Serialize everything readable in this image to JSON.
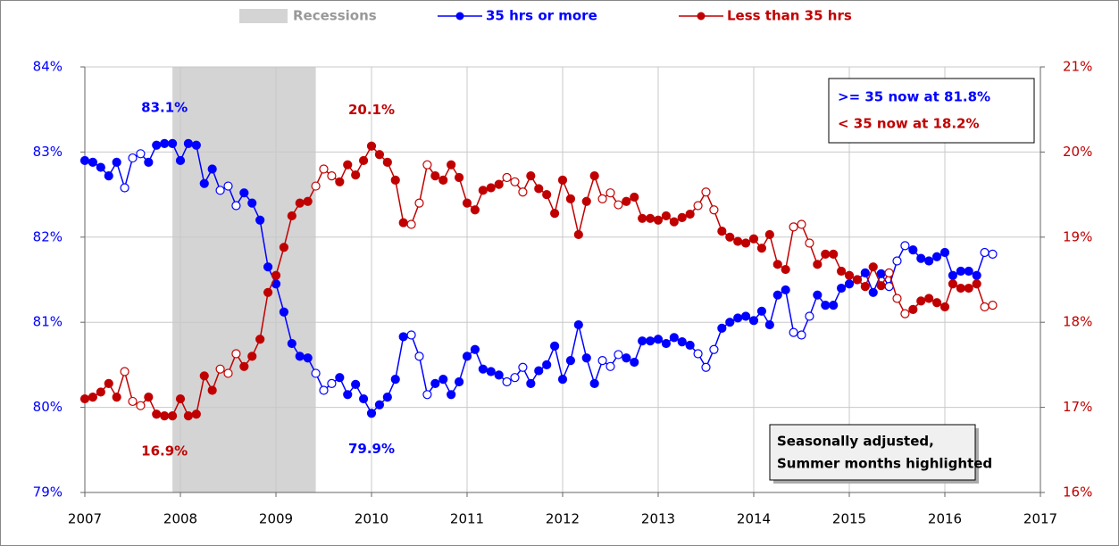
{
  "chart_data": {
    "type": "line",
    "legend": "top",
    "grid": true,
    "highlight_months": [
      6,
      7,
      8
    ],
    "x": [
      "2007-01",
      "2007-02",
      "2007-03",
      "2007-04",
      "2007-05",
      "2007-06",
      "2007-07",
      "2007-08",
      "2007-09",
      "2007-10",
      "2007-11",
      "2007-12",
      "2008-01",
      "2008-02",
      "2008-03",
      "2008-04",
      "2008-05",
      "2008-06",
      "2008-07",
      "2008-08",
      "2008-09",
      "2008-10",
      "2008-11",
      "2008-12",
      "2009-01",
      "2009-02",
      "2009-03",
      "2009-04",
      "2009-05",
      "2009-06",
      "2009-07",
      "2009-08",
      "2009-09",
      "2009-10",
      "2009-11",
      "2009-12",
      "2010-01",
      "2010-02",
      "2010-03",
      "2010-04",
      "2010-05",
      "2010-06",
      "2010-07",
      "2010-08",
      "2010-09",
      "2010-10",
      "2010-11",
      "2010-12",
      "2011-01",
      "2011-02",
      "2011-03",
      "2011-04",
      "2011-05",
      "2011-06",
      "2011-07",
      "2011-08",
      "2011-09",
      "2011-10",
      "2011-11",
      "2011-12",
      "2012-01",
      "2012-02",
      "2012-03",
      "2012-04",
      "2012-05",
      "2012-06",
      "2012-07",
      "2012-08",
      "2012-09",
      "2012-10",
      "2012-11",
      "2012-12",
      "2013-01",
      "2013-02",
      "2013-03",
      "2013-04",
      "2013-05",
      "2013-06",
      "2013-07",
      "2013-08",
      "2013-09",
      "2013-10",
      "2013-11",
      "2013-12",
      "2014-01",
      "2014-02",
      "2014-03",
      "2014-04",
      "2014-05",
      "2014-06",
      "2014-07",
      "2014-08",
      "2014-09",
      "2014-10",
      "2014-11",
      "2014-12",
      "2015-01",
      "2015-02",
      "2015-03",
      "2015-04",
      "2015-05",
      "2015-06",
      "2015-07",
      "2015-08",
      "2015-09",
      "2015-10",
      "2015-11",
      "2015-12",
      "2016-01",
      "2016-02",
      "2016-03",
      "2016-04",
      "2016-05",
      "2016-06",
      "2016-07"
    ],
    "xlim": [
      2007,
      2017
    ],
    "xticks": [
      2007,
      2008,
      2009,
      2010,
      2011,
      2012,
      2013,
      2014,
      2015,
      2016,
      2017
    ],
    "ylim": [
      79,
      84
    ],
    "yticks": [
      {
        "value": 79,
        "label": "79%"
      },
      {
        "value": 80,
        "label": "80%"
      },
      {
        "value": 81,
        "label": "81%"
      },
      {
        "value": 82,
        "label": "82%"
      },
      {
        "value": 83,
        "label": "83%"
      },
      {
        "value": 84,
        "label": "84%"
      }
    ],
    "y2lim": [
      16,
      21
    ],
    "y2ticks": [
      {
        "value": 16,
        "label": "16%"
      },
      {
        "value": 17,
        "label": "17%"
      },
      {
        "value": 18,
        "label": "18%"
      },
      {
        "value": 19,
        "label": "19%"
      },
      {
        "value": 20,
        "label": "20%"
      },
      {
        "value": 21,
        "label": "21%"
      }
    ],
    "recessions": {
      "name": "Recessions",
      "color": "#d4d4d4",
      "spans": [
        {
          "start": "2007-12",
          "end": "2009-06"
        }
      ]
    },
    "series": [
      {
        "name": "35 hrs or more",
        "color": "#0000ff",
        "axis": "y",
        "max_label": "83.1%",
        "min_label": "79.9%",
        "now_label": ">= 35 now at 81.8%",
        "values": [
          82.9,
          82.88,
          82.82,
          82.72,
          82.88,
          82.58,
          82.93,
          82.98,
          82.88,
          83.08,
          83.1,
          83.1,
          82.9,
          83.1,
          83.08,
          82.63,
          82.8,
          82.55,
          82.6,
          82.37,
          82.52,
          82.4,
          82.2,
          81.65,
          81.45,
          81.12,
          80.75,
          80.6,
          80.58,
          80.4,
          80.2,
          80.28,
          80.35,
          80.15,
          80.27,
          80.1,
          79.93,
          80.03,
          80.12,
          80.33,
          80.83,
          80.85,
          80.6,
          80.15,
          80.28,
          80.33,
          80.15,
          80.3,
          80.6,
          80.68,
          80.45,
          80.42,
          80.38,
          80.3,
          80.35,
          80.47,
          80.28,
          80.43,
          80.5,
          80.72,
          80.33,
          80.55,
          80.97,
          80.58,
          80.28,
          80.55,
          80.48,
          80.62,
          80.58,
          80.53,
          80.78,
          80.78,
          80.8,
          80.75,
          80.82,
          80.77,
          80.73,
          80.63,
          80.47,
          80.68,
          80.93,
          81.0,
          81.05,
          81.07,
          81.02,
          81.13,
          80.97,
          81.32,
          81.38,
          80.88,
          80.85,
          81.07,
          81.32,
          81.2,
          81.2,
          81.4,
          81.45,
          81.5,
          81.58,
          81.35,
          81.57,
          81.42,
          81.72,
          81.9,
          81.85,
          81.75,
          81.72,
          81.77,
          81.82,
          81.55,
          81.6,
          81.6,
          81.55,
          81.82,
          81.8
        ]
      },
      {
        "name": "Less than 35 hrs",
        "color": "#c00000",
        "axis": "y2",
        "max_label": "20.1%",
        "min_label": "16.9%",
        "now_label": "< 35 now at 18.2%",
        "values": [
          17.1,
          17.12,
          17.18,
          17.28,
          17.12,
          17.42,
          17.07,
          17.02,
          17.12,
          16.92,
          16.9,
          16.9,
          17.1,
          16.9,
          16.92,
          17.37,
          17.2,
          17.45,
          17.4,
          17.63,
          17.48,
          17.6,
          17.8,
          18.35,
          18.55,
          18.88,
          19.25,
          19.4,
          19.42,
          19.6,
          19.8,
          19.72,
          19.65,
          19.85,
          19.73,
          19.9,
          20.07,
          19.97,
          19.88,
          19.67,
          19.17,
          19.15,
          19.4,
          19.85,
          19.72,
          19.67,
          19.85,
          19.7,
          19.4,
          19.32,
          19.55,
          19.58,
          19.62,
          19.7,
          19.65,
          19.53,
          19.72,
          19.57,
          19.5,
          19.28,
          19.67,
          19.45,
          19.03,
          19.42,
          19.72,
          19.45,
          19.52,
          19.38,
          19.42,
          19.47,
          19.22,
          19.22,
          19.2,
          19.25,
          19.18,
          19.23,
          19.27,
          19.37,
          19.53,
          19.32,
          19.07,
          19.0,
          18.95,
          18.93,
          18.98,
          18.87,
          19.03,
          18.68,
          18.62,
          19.12,
          19.15,
          18.93,
          18.68,
          18.8,
          18.8,
          18.6,
          18.55,
          18.5,
          18.42,
          18.65,
          18.43,
          18.58,
          18.28,
          18.1,
          18.15,
          18.25,
          18.28,
          18.23,
          18.18,
          18.45,
          18.4,
          18.4,
          18.45,
          18.18,
          18.2
        ]
      }
    ],
    "note": [
      "Seasonally adjusted,",
      "Summer months highlighted"
    ]
  }
}
